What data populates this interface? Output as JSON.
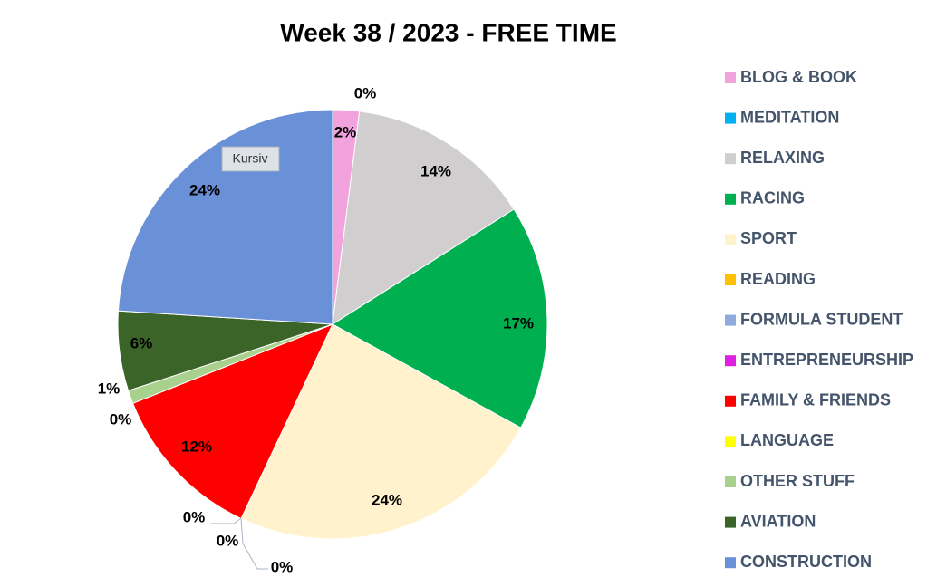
{
  "chart_data": {
    "type": "pie",
    "title": "Week 38 / 2023 - FREE TIME",
    "categories": [
      "BLOG & BOOK",
      "MEDITATION",
      "RELAXING",
      "RACING",
      "SPORT",
      "READING",
      "FORMULA STUDENT",
      "ENTREPRENEURSHIP",
      "FAMILY & FRIENDS",
      "LANGUAGE",
      "OTHER STUFF",
      "AVIATION",
      "CONSTRUCTION"
    ],
    "values": [
      2,
      0,
      14,
      17,
      24,
      0,
      0,
      0,
      12,
      0,
      1,
      6,
      24
    ],
    "value_labels": [
      "2%",
      "0%",
      "14%",
      "17%",
      "24%",
      "0%",
      "0%",
      "0%",
      "12%",
      "0%",
      "1%",
      "6%",
      "24%"
    ],
    "colors": [
      "#f2a3dd",
      "#00b0f0",
      "#d0cece",
      "#00b050",
      "#fff2cc",
      "#ffc000",
      "#8faadc",
      "#e020e0",
      "#ff0000",
      "#ffff00",
      "#a9d18e",
      "#3b6428",
      "#6a90d8"
    ],
    "legend": "right",
    "tooltip": "Kursiv"
  }
}
